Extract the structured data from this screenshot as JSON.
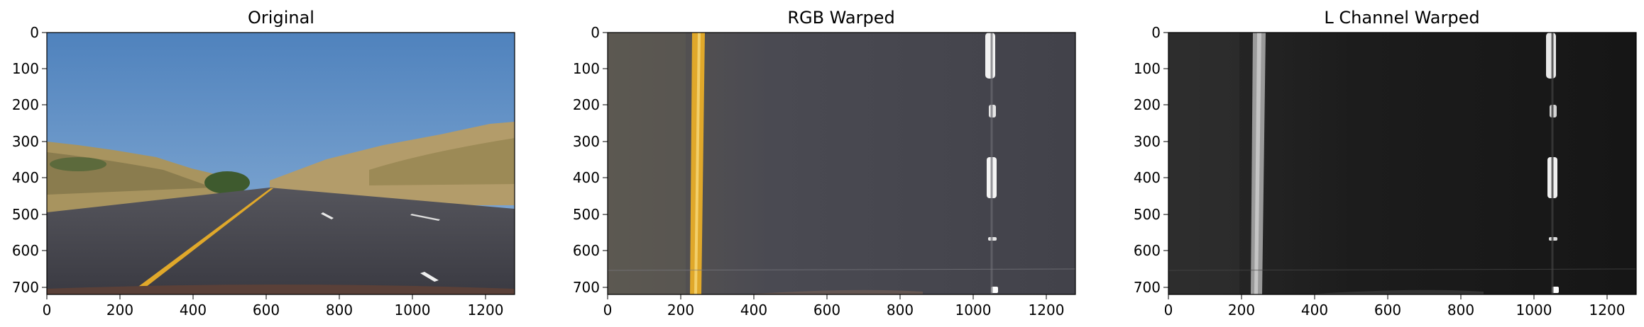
{
  "figure": {
    "panels": [
      {
        "title": "Original",
        "image": "road-photo-original",
        "x_ticks": [
          "0",
          "200",
          "400",
          "600",
          "800",
          "1000",
          "1200"
        ],
        "y_ticks": [
          "0",
          "100",
          "200",
          "300",
          "400",
          "500",
          "600",
          "700"
        ]
      },
      {
        "title": "RGB Warped",
        "image": "road-birds-eye-rgb",
        "x_ticks": [
          "0",
          "200",
          "400",
          "600",
          "800",
          "1000",
          "1200"
        ],
        "y_ticks": [
          "0",
          "100",
          "200",
          "300",
          "400",
          "500",
          "600",
          "700"
        ]
      },
      {
        "title": "L Channel Warped",
        "image": "road-birds-eye-l-channel",
        "x_ticks": [
          "0",
          "200",
          "400",
          "600",
          "800",
          "1000",
          "1200"
        ],
        "y_ticks": [
          "0",
          "100",
          "200",
          "300",
          "400",
          "500",
          "600",
          "700"
        ]
      }
    ],
    "x_range": [
      0,
      1280
    ],
    "y_range": [
      720,
      0
    ],
    "colors": {
      "sky": "#5f8fc4",
      "asphalt": "#45454d",
      "yellow_line": "#e0a82a",
      "hill": "#b09868"
    }
  }
}
